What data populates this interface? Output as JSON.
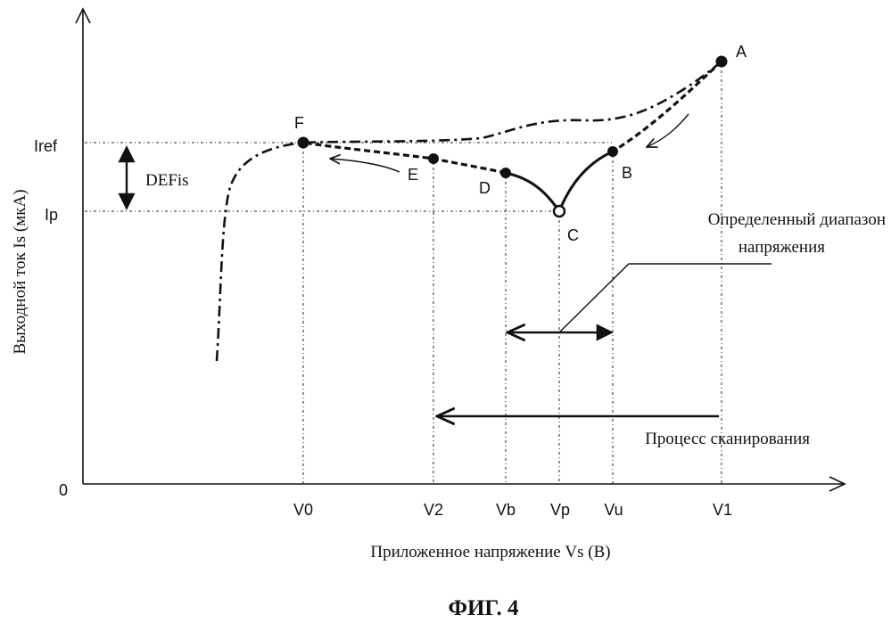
{
  "axes": {
    "y_label": "Выходной ток Is (мкА)",
    "x_label": "Приложенное напряжение Vs (В)",
    "origin": "0",
    "y_ticks": [
      "Iref",
      "Ip"
    ],
    "x_ticks": [
      "V0",
      "V2",
      "Vb",
      "Vp",
      "Vu",
      "V1"
    ]
  },
  "points": [
    "A",
    "B",
    "C",
    "D",
    "E",
    "F"
  ],
  "annotations": {
    "defis": "DEFis",
    "range_line1": "Определенный диапазон",
    "range_line2": "напряжения",
    "scan": "Процесс сканирования"
  },
  "caption": "ФИГ. 4"
}
